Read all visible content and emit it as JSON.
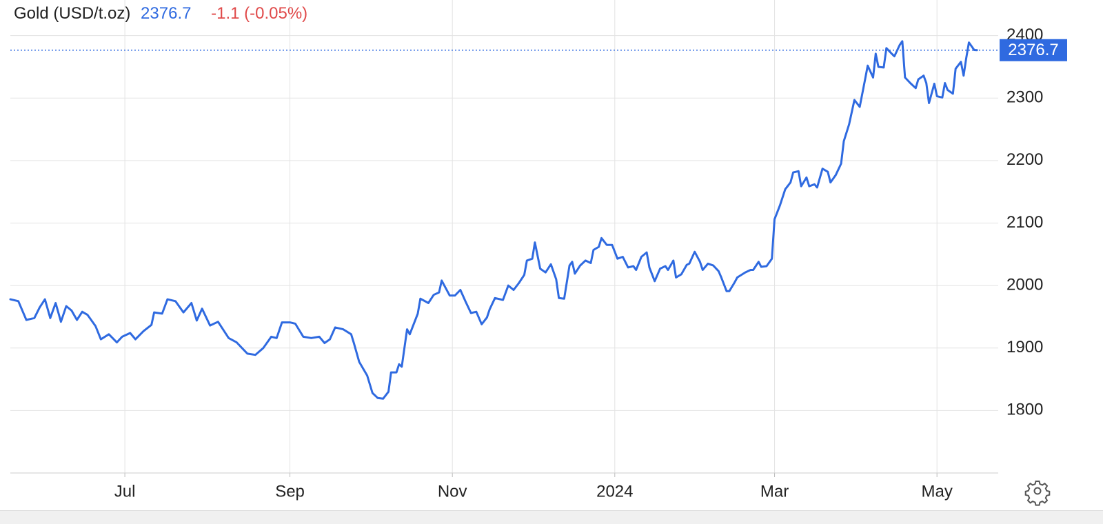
{
  "chart_data": {
    "type": "line",
    "title": "Gold (USD/t.oz)",
    "change": "-1.1 (-0.05%)",
    "x": [
      0,
      3,
      6,
      9,
      11,
      13,
      15,
      17,
      19,
      21,
      23,
      25,
      27,
      29,
      32,
      34,
      37,
      40,
      42,
      45,
      47,
      50,
      53,
      54,
      57,
      59,
      62,
      65,
      68,
      70,
      72,
      75,
      78,
      82,
      85,
      89,
      92,
      95,
      98,
      100,
      102,
      105,
      107,
      110,
      113,
      116,
      118,
      120,
      122,
      125,
      128,
      129,
      131,
      134,
      136,
      138,
      140,
      142,
      143,
      145,
      146,
      147,
      149,
      150,
      153,
      154,
      157,
      159,
      161,
      162,
      165,
      167,
      169,
      171,
      173,
      175,
      177,
      179,
      180,
      182,
      185,
      187,
      189,
      191,
      193,
      194,
      196,
      197,
      199,
      201,
      203,
      205,
      206,
      208,
      210,
      211,
      212,
      214,
      216,
      218,
      219,
      221,
      222,
      224,
      226,
      228,
      230,
      232,
      234,
      235,
      237,
      239,
      240,
      242,
      244,
      246,
      247,
      249,
      250,
      252,
      254,
      255,
      257,
      259,
      260,
      262,
      264,
      266,
      267,
      269,
      270,
      272,
      273,
      276,
      278,
      279,
      281,
      282,
      284,
      286,
      287,
      289,
      291,
      293,
      294,
      296,
      297,
      299,
      300,
      302,
      303,
      305,
      307,
      308,
      310,
      312,
      313,
      315,
      317,
      319,
      321,
      322,
      324,
      325,
      326,
      328,
      329,
      331,
      332,
      334,
      335,
      336,
      338,
      340,
      341,
      343,
      344,
      345,
      347,
      348,
      350,
      351,
      352,
      354,
      355,
      357,
      358,
      359,
      360,
      362,
      363
    ],
    "series": [
      {
        "color": "#2f6ae0",
        "values": [
          1978,
          1975,
          1945,
          1948,
          1965,
          1978,
          1948,
          1972,
          1942,
          1967,
          1960,
          1945,
          1958,
          1953,
          1935,
          1914,
          1922,
          1909,
          1918,
          1924,
          1914,
          1927,
          1937,
          1957,
          1955,
          1978,
          1975,
          1957,
          1972,
          1944,
          1963,
          1936,
          1942,
          1916,
          1909,
          1891,
          1889,
          1900,
          1918,
          1916,
          1941,
          1941,
          1939,
          1918,
          1916,
          1918,
          1908,
          1914,
          1933,
          1930,
          1922,
          1908,
          1878,
          1856,
          1828,
          1820,
          1819,
          1830,
          1861,
          1861,
          1874,
          1870,
          1930,
          1922,
          1955,
          1979,
          1972,
          1985,
          1989,
          2008,
          1984,
          1984,
          1993,
          1974,
          1956,
          1958,
          1938,
          1949,
          1962,
          1980,
          1977,
          2000,
          1993,
          2004,
          2017,
          2040,
          2043,
          2069,
          2027,
          2021,
          2034,
          2010,
          1980,
          1979,
          2032,
          2038,
          2019,
          2032,
          2040,
          2036,
          2057,
          2062,
          2076,
          2065,
          2065,
          2043,
          2046,
          2029,
          2031,
          2025,
          2046,
          2053,
          2029,
          2007,
          2027,
          2031,
          2025,
          2040,
          2013,
          2018,
          2033,
          2035,
          2054,
          2038,
          2025,
          2035,
          2032,
          2023,
          2013,
          1991,
          1991,
          2005,
          2013,
          2021,
          2025,
          2025,
          2038,
          2030,
          2031,
          2043,
          2106,
          2128,
          2154,
          2165,
          2181,
          2183,
          2159,
          2173,
          2159,
          2162,
          2157,
          2187,
          2182,
          2165,
          2177,
          2195,
          2231,
          2258,
          2297,
          2286,
          2330,
          2352,
          2333,
          2371,
          2350,
          2349,
          2380,
          2371,
          2367,
          2385,
          2391,
          2333,
          2324,
          2316,
          2330,
          2336,
          2324,
          2292,
          2323,
          2303,
          2301,
          2324,
          2313,
          2307,
          2347,
          2358,
          2336,
          2364,
          2389,
          2377,
          2376.7
        ]
      }
    ],
    "xlim": [
      0,
      371
    ],
    "xticks": [
      {
        "value": 43,
        "label": "Jul"
      },
      {
        "value": 105,
        "label": "Sep"
      },
      {
        "value": 166,
        "label": "Nov"
      },
      {
        "value": 227,
        "label": "2024"
      },
      {
        "value": 287,
        "label": "Mar"
      },
      {
        "value": 348,
        "label": "May"
      }
    ],
    "ylim": [
      1700,
      2457
    ],
    "yticks": [
      1800,
      1900,
      2000,
      2100,
      2200,
      2300,
      2400
    ],
    "grid": true
  }
}
